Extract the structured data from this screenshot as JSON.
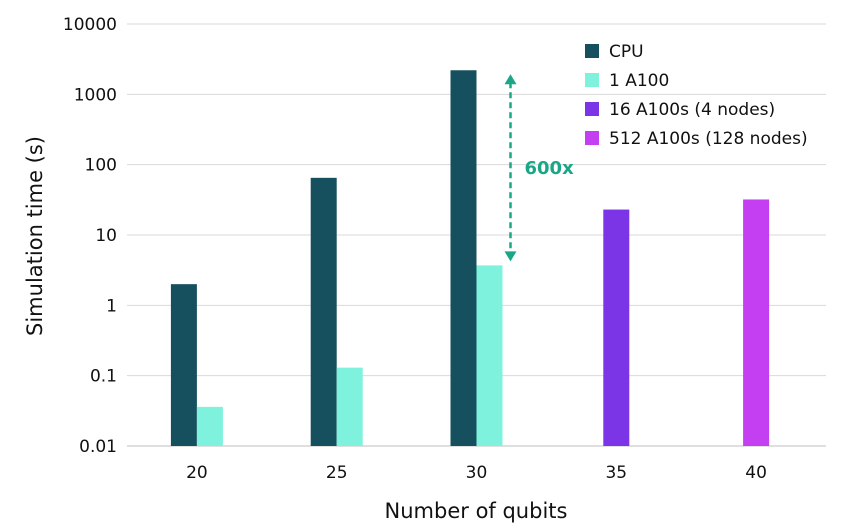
{
  "chart_data": {
    "type": "bar",
    "title": "",
    "xlabel": "Number of qubits",
    "ylabel": "Simulation time (s)",
    "yscale": "log",
    "ylim": [
      0.01,
      10000
    ],
    "yticks": [
      "10000",
      "1000",
      "100",
      "10",
      "1",
      "0.1",
      "0.01"
    ],
    "categories": [
      "20",
      "25",
      "30",
      "35",
      "40"
    ],
    "series": [
      {
        "name": "CPU",
        "color": "#16505f",
        "values": [
          2.0,
          65,
          2200,
          null,
          null
        ]
      },
      {
        "name": "1 A100",
        "color": "#7ef2dc",
        "values": [
          0.036,
          0.13,
          3.7,
          null,
          null
        ]
      },
      {
        "name": "16 A100s (4 nodes)",
        "color": "#7b35e6",
        "values": [
          null,
          null,
          null,
          23,
          null
        ]
      },
      {
        "name": "512 A100s (128 nodes)",
        "color": "#c43ef2",
        "values": [
          null,
          null,
          null,
          null,
          32
        ]
      }
    ],
    "grid": true,
    "legend": "top-right",
    "annotations": [
      {
        "text": "600x",
        "color": "#1aa787",
        "category": "30",
        "from": 2200,
        "to": 3.7
      }
    ]
  }
}
